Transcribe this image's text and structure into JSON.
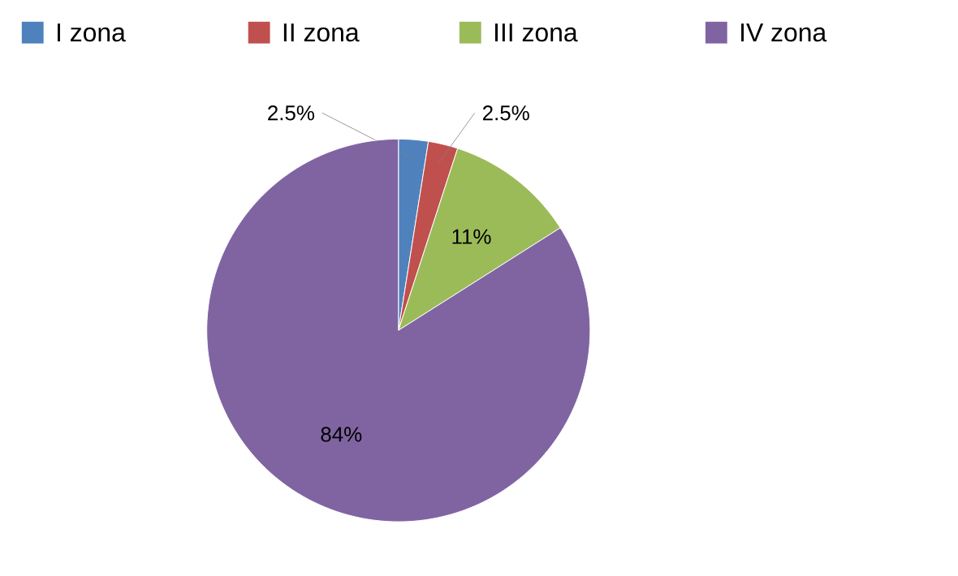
{
  "chart_data": {
    "type": "pie",
    "categories": [
      "I zona",
      "II zona",
      "III zona",
      "IV zona"
    ],
    "values": [
      2.5,
      2.5,
      11,
      84
    ],
    "value_labels": [
      "2.5%",
      "2.5%",
      "11%",
      "84%"
    ],
    "colors": [
      "#4f81bd",
      "#c0504d",
      "#9bbb59",
      "#8064a2"
    ],
    "legend": "top"
  }
}
